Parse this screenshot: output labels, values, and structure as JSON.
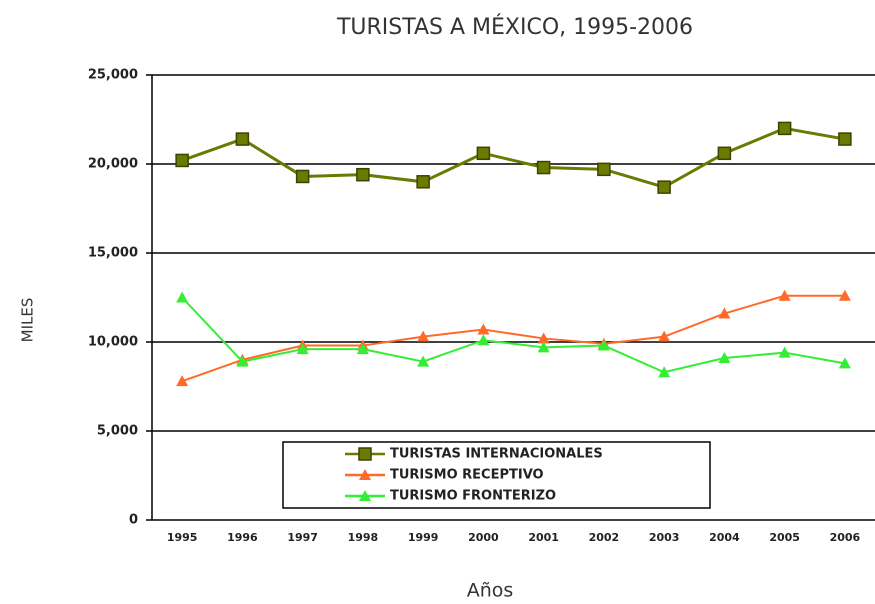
{
  "chart_data": {
    "type": "line",
    "title": "TURISTAS A MÉXICO, 1995-2006",
    "x_label": "Años",
    "y_label": "MILES",
    "categories": [
      "1995",
      "1996",
      "1997",
      "1998",
      "1999",
      "2000",
      "2001",
      "2002",
      "2003",
      "2004",
      "2005",
      "2006"
    ],
    "series": [
      {
        "name": "TURISTAS INTERNACIONALES",
        "color": "#6b7a00",
        "marker": "square",
        "values": [
          20200,
          21400,
          19300,
          19400,
          19000,
          20600,
          19800,
          19700,
          18700,
          20600,
          22000,
          21400
        ]
      },
      {
        "name": "TURISMO RECEPTIVO",
        "color": "#ff6a2a",
        "marker": "triangle",
        "values": [
          7800,
          9000,
          9800,
          9800,
          10300,
          10700,
          10200,
          9900,
          10300,
          11600,
          12600,
          12600
        ]
      },
      {
        "name": "TURISMO FRONTERIZO",
        "color": "#33ee33",
        "marker": "triangle",
        "values": [
          12500,
          8900,
          9600,
          9600,
          8900,
          10100,
          9700,
          9800,
          8300,
          9100,
          9400,
          8800
        ]
      }
    ],
    "ylim": [
      0,
      25000
    ],
    "yticks": [
      0,
      {
        "value": 5000,
        "label": "5,000"
      },
      {
        "value": 10000,
        "label": "10,000"
      },
      {
        "value": 15000,
        "label": "15,000"
      },
      {
        "value": 20000,
        "label": "20,000"
      },
      {
        "value": 25000,
        "label": "25,000"
      }
    ],
    "grid": true,
    "legend": "bottom"
  }
}
